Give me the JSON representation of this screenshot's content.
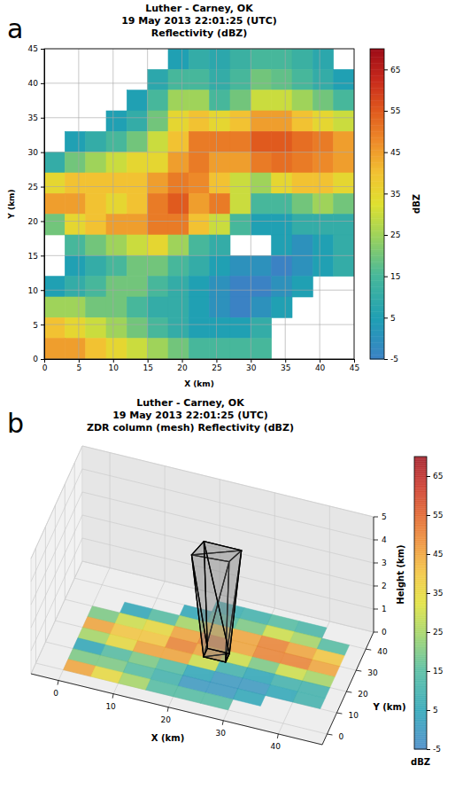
{
  "chart_data": [
    {
      "type": "heatmap",
      "panel": "a",
      "title": [
        "Luther - Carney, OK",
        "19 May 2013 22:01:25 (UTC)",
        "Reflectivity (dBZ)"
      ],
      "xlabel": "X (km)",
      "ylabel": "Y (km)",
      "xlim": [
        0,
        45
      ],
      "ylim": [
        0,
        45
      ],
      "xticks": [
        0,
        5,
        10,
        15,
        20,
        25,
        30,
        35,
        40,
        45
      ],
      "yticks": [
        0,
        5,
        10,
        15,
        20,
        25,
        30,
        35,
        40,
        45
      ],
      "grid": true,
      "x": [
        1.5,
        4.5,
        7.5,
        10.5,
        13.5,
        16.5,
        19.5,
        22.5,
        25.5,
        28.5,
        31.5,
        34.5,
        37.5,
        40.5,
        43.5
      ],
      "y": [
        43.5,
        40.5,
        37.5,
        34.5,
        31.5,
        28.5,
        25.5,
        22.5,
        19.5,
        16.5,
        13.5,
        10.5,
        7.5,
        4.5,
        1.5
      ],
      "cells": [
        [
          null,
          null,
          null,
          null,
          null,
          null,
          5,
          10,
          8,
          12,
          15,
          15,
          12,
          8,
          null
        ],
        [
          null,
          null,
          null,
          null,
          null,
          8,
          15,
          15,
          10,
          15,
          20,
          18,
          15,
          10,
          5
        ],
        [
          null,
          null,
          null,
          null,
          5,
          15,
          25,
          25,
          15,
          20,
          30,
          30,
          25,
          20,
          15
        ],
        [
          null,
          null,
          null,
          5,
          10,
          20,
          35,
          40,
          35,
          40,
          45,
          45,
          40,
          35,
          30
        ],
        [
          null,
          5,
          10,
          15,
          20,
          30,
          40,
          50,
          50,
          50,
          55,
          55,
          52,
          50,
          45
        ],
        [
          10,
          20,
          25,
          30,
          35,
          35,
          45,
          50,
          45,
          45,
          50,
          52,
          50,
          48,
          45
        ],
        [
          35,
          40,
          40,
          40,
          40,
          45,
          50,
          48,
          40,
          30,
          25,
          35,
          40,
          40,
          35
        ],
        [
          45,
          45,
          40,
          35,
          40,
          50,
          55,
          45,
          50,
          30,
          15,
          15,
          20,
          25,
          20
        ],
        [
          20,
          35,
          40,
          45,
          45,
          50,
          50,
          40,
          30,
          15,
          5,
          5,
          10,
          10,
          10
        ],
        [
          null,
          15,
          20,
          25,
          30,
          35,
          25,
          15,
          10,
          null,
          null,
          5,
          0,
          5,
          10
        ],
        [
          null,
          5,
          10,
          15,
          20,
          20,
          15,
          10,
          5,
          0,
          0,
          -5,
          0,
          5,
          10
        ],
        [
          5,
          10,
          15,
          20,
          20,
          15,
          10,
          5,
          0,
          -5,
          -5,
          0,
          5,
          null,
          null
        ],
        [
          25,
          25,
          20,
          20,
          15,
          10,
          10,
          5,
          0,
          -5,
          0,
          5,
          null,
          null,
          null
        ],
        [
          40,
          35,
          30,
          25,
          20,
          15,
          10,
          5,
          5,
          5,
          10,
          null,
          null,
          null,
          null
        ],
        [
          45,
          45,
          40,
          35,
          30,
          25,
          20,
          15,
          15,
          15,
          15,
          null,
          null,
          null,
          null
        ]
      ],
      "colorbar_label": "dBZ",
      "colorbar_range": [
        -5,
        70
      ],
      "colorbar_ticks": [
        -5,
        5,
        15,
        25,
        35,
        45,
        55,
        65
      ]
    },
    {
      "type": "surface3d",
      "panel": "b",
      "title": [
        "Luther - Carney, OK",
        "19 May 2013 22:01:25 (UTC)",
        "ZDR column (mesh) Reflectivity (dBZ)"
      ],
      "xlabel": "X (km)",
      "ylabel": "Y (km)",
      "zlabel": "Height (km)",
      "xlim": [
        -5,
        48
      ],
      "ylim": [
        -5,
        48
      ],
      "zlim": [
        0,
        5
      ],
      "xticks": [
        0,
        10,
        20,
        30,
        40
      ],
      "yticks": [
        0,
        10,
        20,
        30,
        40
      ],
      "zticks": [
        0,
        1,
        2,
        3,
        4,
        5
      ],
      "grid": true,
      "x": [
        2.5,
        7.5,
        12.5,
        17.5,
        22.5,
        27.5,
        32.5,
        37.5,
        42.5
      ],
      "y": [
        42.5,
        37.5,
        32.5,
        27.5,
        22.5,
        17.5,
        12.5,
        7.5,
        2.5
      ],
      "cells": [
        [
          null,
          null,
          null,
          null,
          8,
          10,
          15,
          12,
          null
        ],
        [
          null,
          null,
          null,
          5,
          15,
          20,
          30,
          25,
          15
        ],
        [
          null,
          5,
          15,
          25,
          40,
          45,
          50,
          45,
          40
        ],
        [
          20,
          30,
          35,
          45,
          50,
          45,
          50,
          50,
          45
        ],
        [
          45,
          40,
          40,
          50,
          45,
          30,
          20,
          30,
          25
        ],
        [
          25,
          35,
          45,
          45,
          30,
          10,
          5,
          10,
          10
        ],
        [
          5,
          15,
          20,
          15,
          5,
          0,
          0,
          5,
          10
        ],
        [
          20,
          20,
          15,
          10,
          0,
          0,
          5,
          null,
          null
        ],
        [
          45,
          35,
          25,
          15,
          15,
          15,
          null,
          null,
          null
        ]
      ],
      "mesh_vertices": [
        [
          22,
          20,
          0
        ],
        [
          26,
          20,
          0
        ],
        [
          26,
          24,
          0
        ],
        [
          22,
          24,
          0
        ],
        [
          20,
          19,
          4.4
        ],
        [
          27,
          18,
          4.6
        ],
        [
          28,
          25,
          4.5
        ],
        [
          21,
          26,
          4.4
        ]
      ],
      "mesh_faces": [
        [
          0,
          1,
          2
        ],
        [
          0,
          2,
          3
        ],
        [
          4,
          5,
          6
        ],
        [
          4,
          6,
          7
        ],
        [
          0,
          1,
          5
        ],
        [
          0,
          5,
          4
        ],
        [
          1,
          2,
          6
        ],
        [
          1,
          6,
          5
        ],
        [
          2,
          3,
          7
        ],
        [
          2,
          7,
          6
        ],
        [
          3,
          0,
          4
        ],
        [
          3,
          4,
          7
        ]
      ],
      "colorbar_label": "dBZ",
      "colorbar_range": [
        -5,
        70
      ],
      "colorbar_ticks": [
        -5,
        5,
        15,
        25,
        35,
        45,
        55,
        65
      ]
    }
  ]
}
